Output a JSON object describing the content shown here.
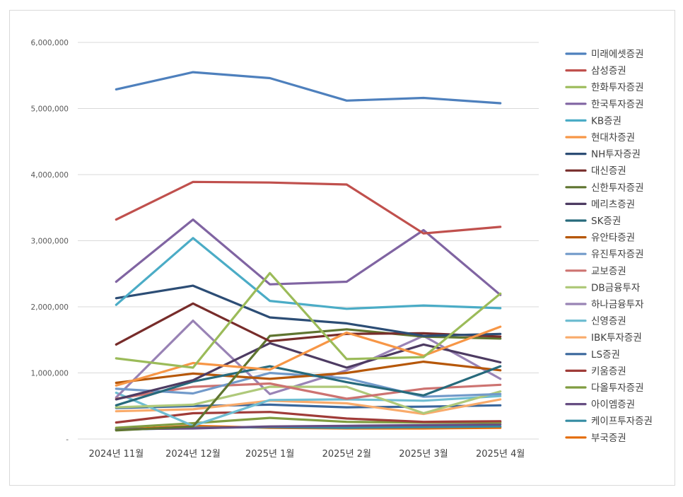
{
  "chart_data": {
    "type": "line",
    "title": "",
    "xlabel": "",
    "ylabel": "",
    "ylim": [
      0,
      6000000
    ],
    "yticks": [
      {
        "value": 0,
        "label": "-"
      },
      {
        "value": 1000000,
        "label": "1,000,000"
      },
      {
        "value": 2000000,
        "label": "2,000,000"
      },
      {
        "value": 3000000,
        "label": "3,000,000"
      },
      {
        "value": 4000000,
        "label": "4,000,000"
      },
      {
        "value": 5000000,
        "label": "5,000,000"
      },
      {
        "value": 6000000,
        "label": "6,000,000"
      }
    ],
    "categories": [
      "2024년 11월",
      "2024년 12월",
      "2025년 1월",
      "2025년 2월",
      "2025년 3월",
      "2025년 4월"
    ],
    "grid": true,
    "legend": "right",
    "series": [
      {
        "name": "미래에셋증권",
        "color": "#4e80bd",
        "values": [
          5290000,
          5550000,
          5460000,
          5120000,
          5160000,
          5080000
        ]
      },
      {
        "name": "삼성증권",
        "color": "#c0504d",
        "values": [
          3320000,
          3890000,
          3880000,
          3850000,
          3110000,
          3210000
        ]
      },
      {
        "name": "한화투자증권",
        "color": "#9bbb59",
        "values": [
          1220000,
          1080000,
          2510000,
          1210000,
          1240000,
          2200000
        ]
      },
      {
        "name": "한국투자증권",
        "color": "#8064a2",
        "values": [
          2380000,
          3320000,
          2340000,
          2380000,
          3160000,
          2180000
        ]
      },
      {
        "name": "KB증권",
        "color": "#4bacc6",
        "values": [
          2030000,
          3040000,
          2090000,
          1970000,
          2020000,
          1980000
        ]
      },
      {
        "name": "현대차증권",
        "color": "#f79646",
        "values": [
          810000,
          1150000,
          1050000,
          1610000,
          1260000,
          1700000
        ]
      },
      {
        "name": "NH투자증권",
        "color": "#2c4d75",
        "values": [
          2130000,
          2320000,
          1840000,
          1750000,
          1560000,
          1590000
        ]
      },
      {
        "name": "대신증권",
        "color": "#772c2a",
        "values": [
          1430000,
          2050000,
          1480000,
          1590000,
          1600000,
          1550000
        ]
      },
      {
        "name": "신한투자증권",
        "color": "#5f7530",
        "values": [
          130000,
          190000,
          1560000,
          1660000,
          1550000,
          1520000
        ]
      },
      {
        "name": "메리츠증권",
        "color": "#4d3b62",
        "values": [
          600000,
          890000,
          1450000,
          1080000,
          1430000,
          1160000
        ]
      },
      {
        "name": "SK증권",
        "color": "#276a7c",
        "values": [
          510000,
          870000,
          1100000,
          860000,
          660000,
          1100000
        ]
      },
      {
        "name": "유안타증권",
        "color": "#b65708",
        "values": [
          850000,
          990000,
          910000,
          1000000,
          1170000,
          1040000
        ]
      },
      {
        "name": "유진투자증권",
        "color": "#729aca",
        "values": [
          760000,
          690000,
          1000000,
          920000,
          640000,
          680000
        ]
      },
      {
        "name": "교보증권",
        "color": "#cd7371",
        "values": [
          610000,
          790000,
          840000,
          610000,
          760000,
          820000
        ]
      },
      {
        "name": "DB금융투자",
        "color": "#afc97a",
        "values": [
          480000,
          520000,
          790000,
          790000,
          390000,
          720000
        ]
      },
      {
        "name": "하나금융투자",
        "color": "#9983b5",
        "values": [
          630000,
          1790000,
          680000,
          1040000,
          1560000,
          910000
        ]
      },
      {
        "name": "신영증권",
        "color": "#6fbdd1",
        "values": [
          700000,
          200000,
          590000,
          600000,
          580000,
          650000
        ]
      },
      {
        "name": "IBK투자증권",
        "color": "#f9ab6b",
        "values": [
          420000,
          450000,
          580000,
          540000,
          380000,
          600000
        ]
      },
      {
        "name": "LS증권",
        "color": "#3a679c",
        "values": [
          470000,
          500000,
          520000,
          480000,
          490000,
          510000
        ]
      },
      {
        "name": "키움증권",
        "color": "#9f3b38",
        "values": [
          250000,
          390000,
          410000,
          310000,
          260000,
          270000
        ]
      },
      {
        "name": "다올투자증권",
        "color": "#7f9c40",
        "values": [
          170000,
          240000,
          320000,
          260000,
          250000,
          250000
        ]
      },
      {
        "name": "아이엠증권",
        "color": "#664e82",
        "values": [
          150000,
          160000,
          190000,
          200000,
          210000,
          220000
        ]
      },
      {
        "name": "케이프투자증권",
        "color": "#358ca3",
        "values": [
          140000,
          170000,
          180000,
          170000,
          180000,
          190000
        ]
      },
      {
        "name": "부국증권",
        "color": "#e46c0a",
        "values": [
          140000,
          200000,
          170000,
          160000,
          160000,
          170000
        ]
      }
    ]
  }
}
